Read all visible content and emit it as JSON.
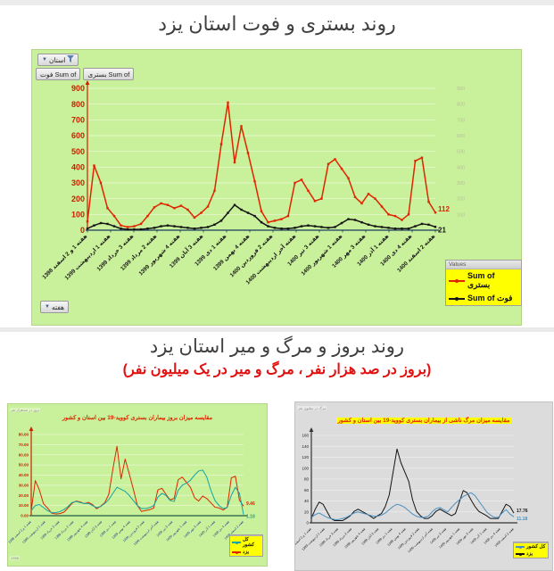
{
  "page": {
    "title1": "روند بستری و فوت استان یزد",
    "title2": "روند بروز و مرگ و میر استان یزد",
    "subtitle2": "(بروز در صد هزار نفر ، مرگ و میر در یک میلیون نفر)"
  },
  "main_ui": {
    "filter_button": "استان",
    "value_field_buttons": [
      "Sum of فوت",
      "Sum of بستری"
    ],
    "axis_field_button": "هفته",
    "legend": {
      "header": "Values",
      "items": [
        {
          "label": "Sum of بستری",
          "color": "#e02500"
        },
        {
          "label": "Sum of فوت",
          "color": "#141414"
        }
      ]
    }
  },
  "inc_ui": {
    "corner_note": "بروز در صدهزار نفر",
    "footer_note": "1398",
    "legend": {
      "items": [
        {
          "label": "کل کشور",
          "color": "#17a3a3"
        },
        {
          "label": "یزد",
          "color": "#e02500"
        }
      ]
    }
  },
  "mort_ui": {
    "corner_note": "مرگ در میلیون نفر",
    "legend": {
      "items": [
        {
          "label": "کل کشور",
          "color": "#4a8fc0"
        },
        {
          "label": "یزد",
          "color": "#141414"
        }
      ]
    }
  },
  "chart_data": [
    {
      "id": "main",
      "type": "line",
      "title": "روند بستری و فوت استان یزد",
      "ylabel": "",
      "xlabel": "هفته",
      "ylim": [
        0,
        900
      ],
      "yticks": [
        0,
        100,
        200,
        300,
        400,
        500,
        600,
        700,
        800,
        900
      ],
      "right_yticks": [
        100,
        200,
        300,
        400,
        500,
        600,
        700,
        800,
        900
      ],
      "grid": true,
      "legend_position": "bottom-right",
      "categories": [
        "هفته 1 و 2 اسفند 1398",
        "هفته 1 اردیبهشت 1399",
        "هفته 3 خرداد 1399",
        "هفته 2 مرداد 1399",
        "هفته 4 شهریور 1399",
        "هفته 3 آبان 1399",
        "هفته 1 دی 1399",
        "هفته 4 بهمن 1399",
        "هفته 2 فروردین 1400",
        "هفته آخر اردیبهشت 1400",
        "هفته 3 تیر 1400",
        "هفته 1 شهریور 1400",
        "هفته 3 مهر 1400",
        "هفته 1 آذر 1400",
        "هفته 4 دی 1400",
        "هفته 2 اسفند 1400"
      ],
      "series": [
        {
          "name": "Sum of بستری",
          "color": "#e02500",
          "end_label": "112",
          "values": [
            55,
            410,
            300,
            140,
            90,
            30,
            20,
            25,
            40,
            90,
            145,
            170,
            160,
            140,
            155,
            130,
            80,
            110,
            150,
            250,
            545,
            810,
            430,
            660,
            490,
            310,
            120,
            50,
            60,
            70,
            90,
            300,
            320,
            250,
            185,
            200,
            420,
            450,
            390,
            330,
            210,
            170,
            230,
            200,
            150,
            100,
            90,
            65,
            100,
            440,
            460,
            180,
            112
          ]
        },
        {
          "name": "Sum of فوت",
          "color": "#141414",
          "end_label": "21",
          "values": [
            10,
            30,
            45,
            40,
            25,
            10,
            5,
            5,
            5,
            10,
            15,
            25,
            30,
            25,
            20,
            15,
            10,
            15,
            20,
            35,
            60,
            110,
            160,
            130,
            110,
            90,
            50,
            25,
            15,
            10,
            10,
            15,
            25,
            30,
            25,
            20,
            15,
            20,
            45,
            70,
            65,
            50,
            35,
            25,
            20,
            15,
            10,
            10,
            10,
            25,
            40,
            35,
            21
          ]
        }
      ]
    },
    {
      "id": "incidence",
      "type": "line",
      "title": "مقایسه میزان بروز بیماران بستری کووید-19 بین استان و کشور",
      "ylim": [
        0,
        80
      ],
      "yticks": [
        0,
        10,
        20,
        30,
        40,
        50,
        60,
        70,
        80
      ],
      "ydecimals": 2,
      "grid": true,
      "legend_position": "bottom-right",
      "categories": [
        "هفته 1 و 2 اسفند 1398",
        "هفته 1 اردیبهشت 1399",
        "هفته 3 خرداد 1399",
        "هفته 2 مرداد 1399",
        "هفته 4 شهریور 1399",
        "هفته 3 آبان 1399",
        "هفته 1 دی 1399",
        "هفته 4 بهمن 1399",
        "هفته 2 فروردین 1400",
        "هفته آخر اردیبهشت 1400",
        "هفته 3 تیر 1400",
        "هفته 1 شهریور 1400",
        "هفته 3 مهر 1400",
        "هفته 1 آذر 1400",
        "هفته 4 دی 1400",
        "هفته 2 اسفند 1400"
      ],
      "series": [
        {
          "name": "یزد",
          "color": "#e02500",
          "end_label": "9.46",
          "values": [
            4.6,
            34.6,
            25.3,
            11.8,
            7.6,
            2.5,
            1.7,
            2.1,
            3.4,
            7.6,
            12.2,
            14.4,
            13.5,
            11.8,
            13.1,
            11,
            6.8,
            9.3,
            12.7,
            21.1,
            46,
            68.4,
            36.3,
            55.7,
            41.4,
            26.2,
            10.1,
            4.2,
            5.1,
            5.9,
            7.6,
            25.3,
            27,
            21.1,
            15.6,
            16.9,
            35.5,
            38,
            32.9,
            27.9,
            17.7,
            14.4,
            19.4,
            16.9,
            12.7,
            8.4,
            7.6,
            5.5,
            8.4,
            37.2,
            38.9,
            15.2,
            9.46
          ]
        },
        {
          "name": "کل کشور",
          "color": "#17a3a3",
          "end_label": "1.18",
          "values": [
            5,
            10,
            11,
            8,
            5,
            3,
            3,
            4,
            6,
            9,
            13,
            14,
            13,
            12,
            12,
            10,
            8,
            9,
            12,
            16,
            22,
            28,
            26,
            24,
            20,
            15,
            10,
            7,
            7,
            8,
            10,
            18,
            22,
            20,
            15,
            14,
            25,
            30,
            32,
            35,
            40,
            44,
            45,
            38,
            25,
            15,
            10,
            7,
            8,
            20,
            28,
            22,
            1.18
          ]
        }
      ]
    },
    {
      "id": "mortality",
      "type": "line",
      "title": "مقایسه میزان مرگ ناشی از بیماران بستری کووید-19 بین استان و کشور",
      "ylim": [
        0,
        160
      ],
      "yticks": [
        0,
        20,
        40,
        60,
        80,
        100,
        120,
        140,
        160
      ],
      "grid": true,
      "legend_position": "bottom-right",
      "categories": [
        "هفته 1 و 2 اسفند 1398",
        "هفته 1 اردیبهشت 1399",
        "هفته 3 خرداد 1399",
        "هفته 2 مرداد 1399",
        "هفته 4 شهریور 1399",
        "هفته 3 آبان 1399",
        "هفته 1 دی 1399",
        "هفته 4 بهمن 1399",
        "هفته 2 فروردین 1400",
        "هفته آخر اردیبهشت 1400",
        "هفته 3 تیر 1400",
        "هفته 1 شهریور 1400",
        "هفته 3 مهر 1400",
        "هفته 1 آذر 1400",
        "هفته 4 دی 1400",
        "هفته 2 اسفند 1400"
      ],
      "series": [
        {
          "name": "یزد",
          "color": "#141414",
          "end_label": "17.76",
          "values": [
            8,
            25,
            38,
            34,
            21,
            8,
            4,
            4,
            4,
            8,
            13,
            21,
            25,
            21,
            17,
            13,
            8,
            13,
            17,
            30,
            51,
            93,
            135,
            110,
            93,
            76,
            42,
            21,
            13,
            8,
            8,
            13,
            21,
            25,
            21,
            17,
            13,
            17,
            38,
            59,
            55,
            42,
            30,
            21,
            17,
            13,
            8,
            8,
            8,
            21,
            34,
            30,
            17.76
          ]
        },
        {
          "name": "کل کشور",
          "color": "#4a8fc0",
          "end_label": "11.18",
          "values": [
            10,
            15,
            18,
            14,
            10,
            8,
            6,
            6,
            8,
            10,
            14,
            18,
            20,
            18,
            16,
            14,
            12,
            12,
            14,
            18,
            24,
            30,
            34,
            32,
            28,
            22,
            16,
            12,
            10,
            10,
            12,
            20,
            26,
            28,
            24,
            20,
            28,
            36,
            42,
            48,
            52,
            55,
            50,
            40,
            30,
            20,
            14,
            10,
            10,
            18,
            24,
            16,
            11.18
          ]
        }
      ]
    }
  ]
}
